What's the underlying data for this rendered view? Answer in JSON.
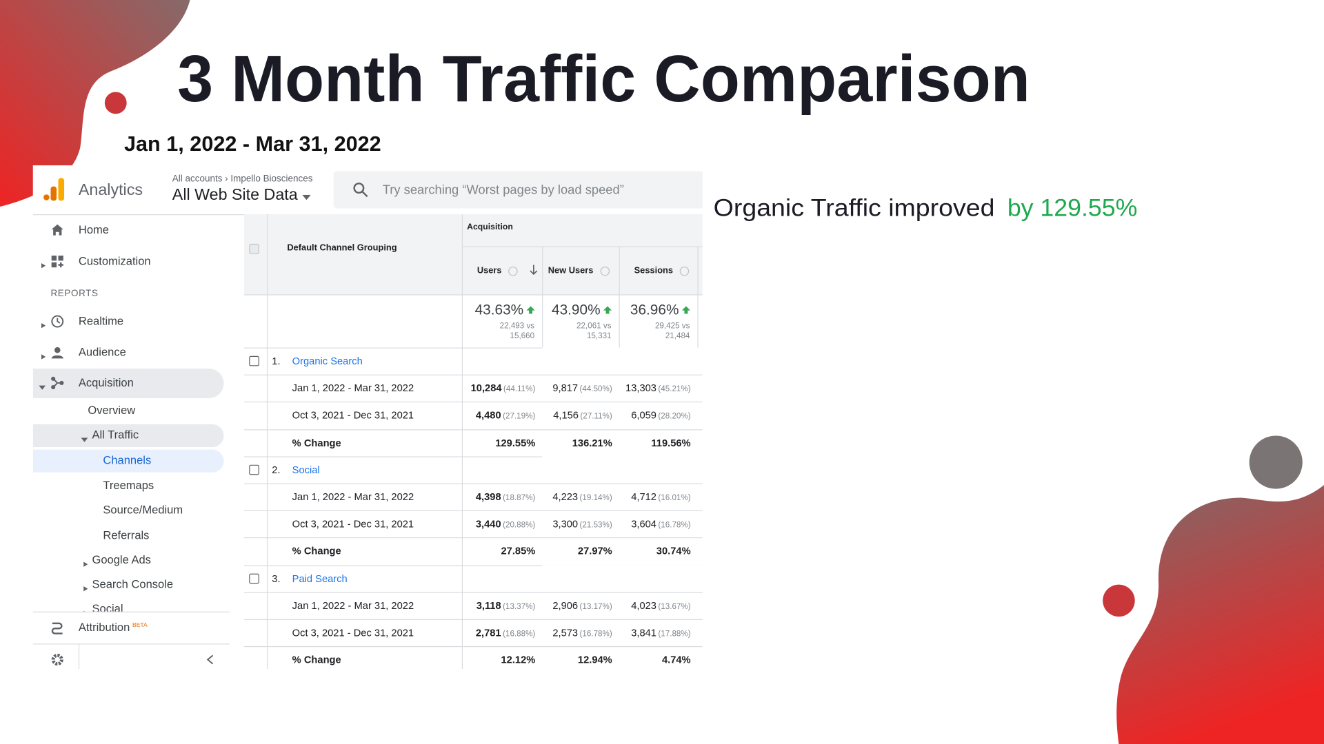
{
  "slide": {
    "title": "3 Month Traffic Comparison",
    "subtitle": "Jan 1, 2022 - Mar 31, 2022",
    "note": "Organic Traffic improved",
    "note_highlight": "by 129.55%"
  },
  "analytics": {
    "brand": "Analytics",
    "breadcrumb": {
      "account": "All accounts",
      "property": "Impello Biosciences"
    },
    "view": "All Web Site Data",
    "search_placeholder": "Try searching “Worst pages by load speed”",
    "nav": [
      "Home",
      "Customization"
    ],
    "reports_heading": "REPORTS",
    "reports": [
      "Realtime",
      "Audience",
      "Acquisition"
    ],
    "acquisition": [
      "Overview",
      "All Traffic",
      "Channels",
      "Treemaps",
      "Source/Medium",
      "Referrals",
      "Google Ads",
      "Search Console",
      "Social"
    ],
    "attribution": "Attribution",
    "attribution_badge": "BETA"
  },
  "table": {
    "dimension": "Default Channel Grouping",
    "group": "Acquisition",
    "columns": [
      "Users",
      "New Users",
      "Sessions"
    ],
    "totals": [
      {
        "change": "43.63%",
        "comparison": "22,493 vs 15,660"
      },
      {
        "change": "43.90%",
        "comparison": "22,061 vs 15,331"
      },
      {
        "change": "36.96%",
        "comparison": "29,425 vs 21,484"
      }
    ],
    "rows": [
      {
        "index": "1.",
        "channel": "Organic Search",
        "periods": [
          {
            "label": "Jan 1, 2022 - Mar 31, 2022",
            "cells": [
              {
                "value": "10,284",
                "share": "(44.11%)"
              },
              {
                "value": "9,817",
                "share": "(44.50%)"
              },
              {
                "value": "13,303",
                "share": "(45.21%)"
              }
            ]
          },
          {
            "label": "Oct 3, 2021 - Dec 31, 2021",
            "cells": [
              {
                "value": "4,480",
                "share": "(27.19%)"
              },
              {
                "value": "4,156",
                "share": "(27.11%)"
              },
              {
                "value": "6,059",
                "share": "(28.20%)"
              }
            ]
          }
        ],
        "change": {
          "label": "% Change",
          "cells": [
            "129.55%",
            "136.21%",
            "119.56%"
          ]
        }
      },
      {
        "index": "2.",
        "channel": "Social",
        "periods": [
          {
            "label": "Jan 1, 2022 - Mar 31, 2022",
            "cells": [
              {
                "value": "4,398",
                "share": "(18.87%)"
              },
              {
                "value": "4,223",
                "share": "(19.14%)"
              },
              {
                "value": "4,712",
                "share": "(16.01%)"
              }
            ]
          },
          {
            "label": "Oct 3, 2021 - Dec 31, 2021",
            "cells": [
              {
                "value": "3,440",
                "share": "(20.88%)"
              },
              {
                "value": "3,300",
                "share": "(21.53%)"
              },
              {
                "value": "3,604",
                "share": "(16.78%)"
              }
            ]
          }
        ],
        "change": {
          "label": "% Change",
          "cells": [
            "27.85%",
            "27.97%",
            "30.74%"
          ]
        }
      },
      {
        "index": "3.",
        "channel": "Paid Search",
        "periods": [
          {
            "label": "Jan 1, 2022 - Mar 31, 2022",
            "cells": [
              {
                "value": "3,118",
                "share": "(13.37%)"
              },
              {
                "value": "2,906",
                "share": "(13.17%)"
              },
              {
                "value": "4,023",
                "share": "(13.67%)"
              }
            ]
          },
          {
            "label": "Oct 3, 2021 - Dec 31, 2021",
            "cells": [
              {
                "value": "2,781",
                "share": "(16.88%)"
              },
              {
                "value": "2,573",
                "share": "(16.78%)"
              },
              {
                "value": "3,841",
                "share": "(17.88%)"
              }
            ]
          }
        ],
        "change": {
          "label": "% Change",
          "cells": [
            "12.12%",
            "12.94%",
            "4.74%"
          ]
        }
      }
    ]
  }
}
